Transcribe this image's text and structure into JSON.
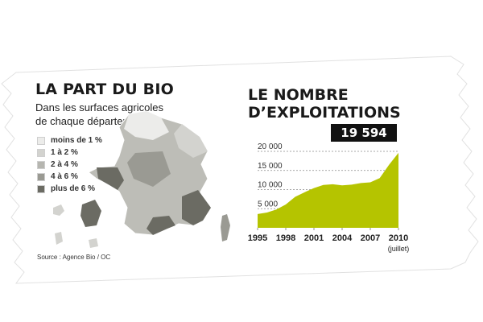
{
  "left": {
    "title": "LA PART DU BIO",
    "subtitle_line1": "Dans les surfaces agricoles",
    "subtitle_line2": "de chaque département",
    "legend": [
      {
        "label": "moins de 1 %",
        "color": "#ececea"
      },
      {
        "label": "1 à 2 %",
        "color": "#d3d3cf"
      },
      {
        "label": "2 à 4 %",
        "color": "#b6b6b0"
      },
      {
        "label": "4 à 6 %",
        "color": "#9a9a93"
      },
      {
        "label": "plus de 6 %",
        "color": "#6b6b63"
      }
    ],
    "source": "Source : Agence Bio / OC"
  },
  "right": {
    "title_line1": "LE NOMBRE",
    "title_line2": "D’EXPLOITATIONS",
    "callout": "19 594"
  },
  "chart_data": {
    "type": "area",
    "x_ticks": [
      "1995",
      "1998",
      "2001",
      "2004",
      "2007",
      "2010"
    ],
    "x_note": "(juillet)",
    "y_ticks": [
      "5 000",
      "10 000",
      "15 000",
      "20 000"
    ],
    "ylim": [
      0,
      20000
    ],
    "xlim": [
      1995,
      2010
    ],
    "area_color": "#b5c400",
    "series": [
      {
        "x": [
          1995,
          1996,
          1997,
          1998,
          1999,
          2000,
          2001,
          2002,
          2003,
          2004,
          2005,
          2006,
          2007,
          2008,
          2009,
          2010
        ],
        "values": [
          3600,
          4000,
          4800,
          6100,
          8100,
          9300,
          10400,
          11200,
          11400,
          11100,
          11300,
          11700,
          11900,
          13000,
          16500,
          19594
        ]
      }
    ]
  }
}
